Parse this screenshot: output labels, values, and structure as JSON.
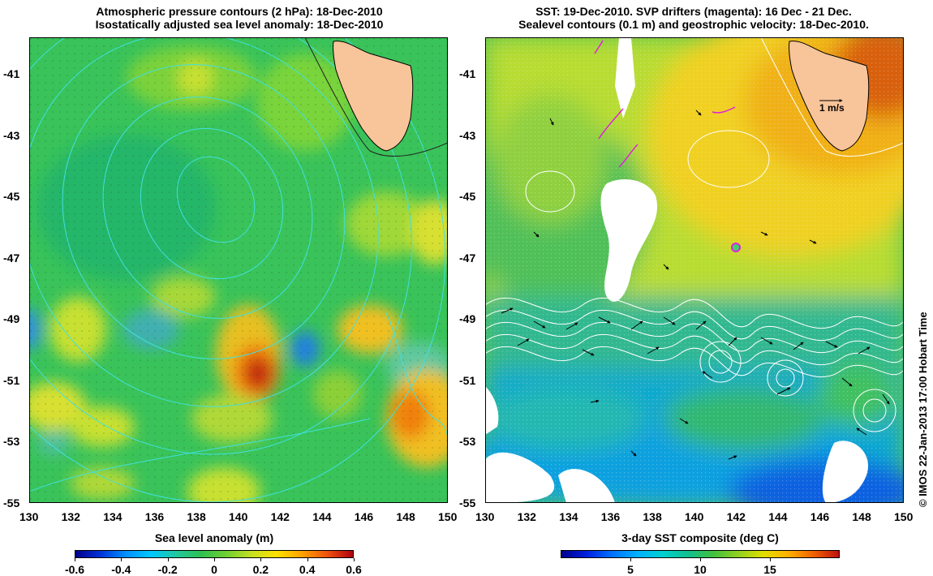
{
  "left_map": {
    "title_line1": "Atmospheric pressure contours (2 hPa): 18-Dec-2010",
    "title_line2": "Isostatically adjusted sea level anomaly: 18-Dec-2010",
    "colorbar_label": "Sea level anomaly (m)",
    "colorbar_ticks": [
      "-0.6",
      "-0.4",
      "-0.2",
      "0",
      "0.2",
      "0.4",
      "0.6"
    ],
    "colorbar_range": [
      -0.6,
      0.6
    ],
    "colors": {
      "background": "#39c35a",
      "contours": "#40e0e0",
      "land": "#f8c49a"
    }
  },
  "right_map": {
    "title_line1": "SST: 19-Dec-2010. SVP drifters (magenta): 16 Dec - 21 Dec.",
    "title_line2": "Sealevel contours (0.1 m) and geostrophic velocity: 18-Dec-2010.",
    "colorbar_label": "3-day SST composite (deg C)",
    "colorbar_ticks": [
      "5",
      "10",
      "15"
    ],
    "colorbar_tick_values": [
      5,
      10,
      15
    ],
    "colorbar_range": [
      0,
      20
    ],
    "velocity_scale_label": "1 m/s",
    "colors": {
      "background": "#55c44e",
      "contours": "#ffffff",
      "land": "#f8c49a",
      "drifters": "#e020e0"
    }
  },
  "axes": {
    "x_ticks": [
      "130",
      "132",
      "134",
      "136",
      "138",
      "140",
      "142",
      "144",
      "146",
      "148",
      "150"
    ],
    "y_ticks": [
      "-41",
      "-43",
      "-45",
      "-47",
      "-49",
      "-51",
      "-53",
      "-55"
    ],
    "lon_range": [
      130,
      150
    ],
    "lat_range": [
      -55,
      -39.8
    ]
  },
  "credit": "© IMOS 22-Jan-2013 17:00 Hobart Time"
}
